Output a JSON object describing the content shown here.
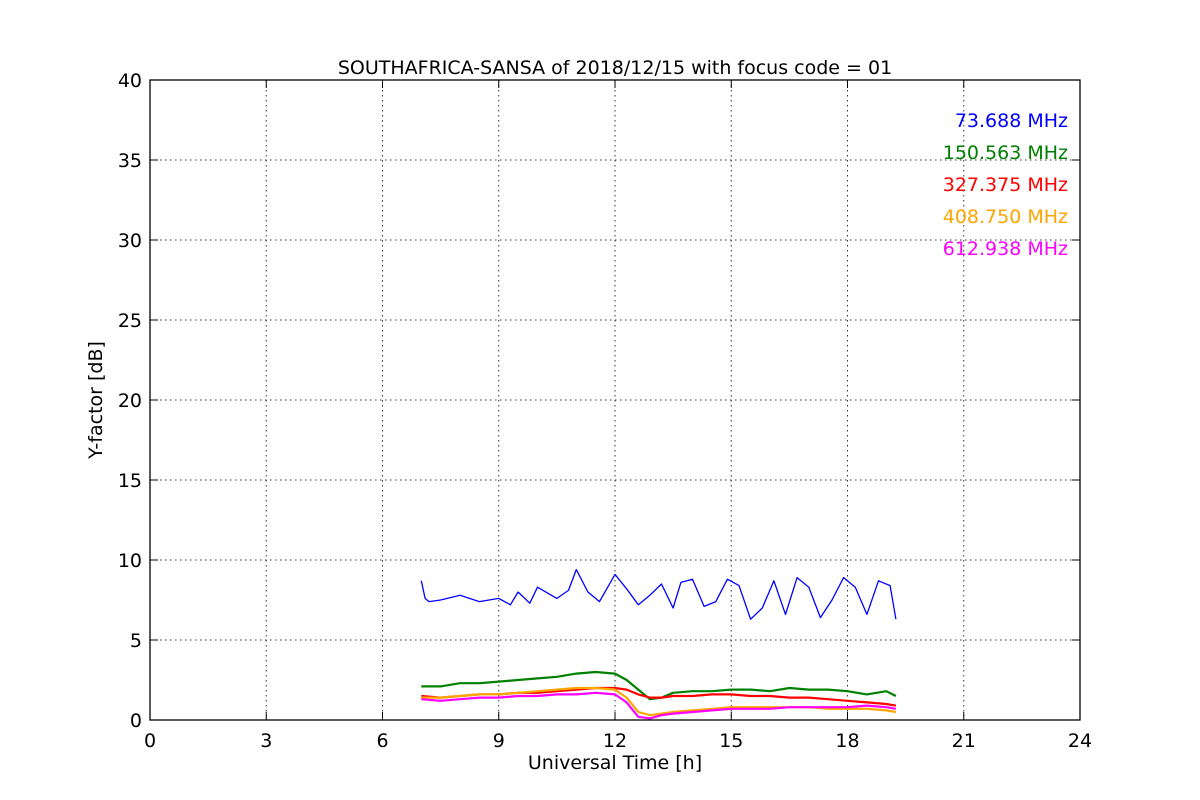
{
  "chart_data": {
    "type": "line",
    "title": "SOUTHAFRICA-SANSA of 2018/12/15 with focus code = 01",
    "xlabel": "Universal Time [h]",
    "ylabel": "Y-factor [dB]",
    "xlim": [
      0,
      24
    ],
    "ylim": [
      0,
      40
    ],
    "xticks": [
      0,
      3,
      6,
      9,
      12,
      15,
      18,
      21,
      24
    ],
    "yticks": [
      0,
      5,
      10,
      15,
      20,
      25,
      30,
      35,
      40
    ],
    "grid": true,
    "legend": "top-right",
    "series": [
      {
        "name": "73.688 MHz",
        "color": "#0000ff",
        "x": [
          7.0,
          7.1,
          7.2,
          7.5,
          8.0,
          8.5,
          9.0,
          9.3,
          9.5,
          9.8,
          10.0,
          10.5,
          10.8,
          11.0,
          11.3,
          11.6,
          12.0,
          12.3,
          12.6,
          12.9,
          13.2,
          13.5,
          13.7,
          14.0,
          14.3,
          14.6,
          14.9,
          15.2,
          15.5,
          15.8,
          16.1,
          16.4,
          16.7,
          17.0,
          17.3,
          17.6,
          17.9,
          18.2,
          18.5,
          18.8,
          19.1,
          19.25
        ],
        "y": [
          8.7,
          7.6,
          7.4,
          7.5,
          7.8,
          7.4,
          7.6,
          7.2,
          8.0,
          7.3,
          8.3,
          7.6,
          8.1,
          9.4,
          8.0,
          7.4,
          9.1,
          8.2,
          7.2,
          7.8,
          8.5,
          7.0,
          8.6,
          8.8,
          7.1,
          7.4,
          8.8,
          8.4,
          6.3,
          7.0,
          8.7,
          6.6,
          8.9,
          8.3,
          6.4,
          7.5,
          8.9,
          8.3,
          6.6,
          8.7,
          8.4,
          6.3
        ]
      },
      {
        "name": "150.563 MHz",
        "color": "#008000",
        "x": [
          7.0,
          7.5,
          8.0,
          8.5,
          9.0,
          9.5,
          10.0,
          10.5,
          11.0,
          11.5,
          12.0,
          12.3,
          12.6,
          12.9,
          13.2,
          13.5,
          14.0,
          14.5,
          15.0,
          15.5,
          16.0,
          16.5,
          17.0,
          17.5,
          18.0,
          18.5,
          19.0,
          19.25
        ],
        "y": [
          2.1,
          2.1,
          2.3,
          2.3,
          2.4,
          2.5,
          2.6,
          2.7,
          2.9,
          3.0,
          2.9,
          2.5,
          1.9,
          1.3,
          1.4,
          1.7,
          1.8,
          1.8,
          1.9,
          1.9,
          1.8,
          2.0,
          1.9,
          1.9,
          1.8,
          1.6,
          1.8,
          1.5
        ]
      },
      {
        "name": "327.375 MHz",
        "color": "#ff0000",
        "x": [
          7.0,
          7.5,
          8.0,
          8.5,
          9.0,
          9.5,
          10.0,
          10.5,
          11.0,
          11.5,
          12.0,
          12.3,
          12.6,
          12.9,
          13.2,
          13.5,
          14.0,
          14.5,
          15.0,
          15.5,
          16.0,
          16.5,
          17.0,
          17.5,
          18.0,
          18.5,
          19.0,
          19.25
        ],
        "y": [
          1.5,
          1.4,
          1.5,
          1.6,
          1.6,
          1.7,
          1.7,
          1.8,
          1.9,
          2.0,
          2.0,
          1.9,
          1.6,
          1.4,
          1.4,
          1.5,
          1.5,
          1.6,
          1.6,
          1.5,
          1.5,
          1.4,
          1.4,
          1.3,
          1.2,
          1.1,
          1.0,
          0.9
        ]
      },
      {
        "name": "408.750 MHz",
        "color": "#ffa500",
        "x": [
          7.0,
          7.5,
          8.0,
          8.5,
          9.0,
          9.5,
          10.0,
          10.5,
          11.0,
          11.5,
          12.0,
          12.3,
          12.6,
          12.9,
          13.2,
          13.5,
          14.0,
          14.5,
          15.0,
          15.5,
          16.0,
          16.5,
          17.0,
          17.5,
          18.0,
          18.5,
          19.0,
          19.25
        ],
        "y": [
          1.4,
          1.4,
          1.5,
          1.6,
          1.6,
          1.7,
          1.8,
          1.9,
          2.0,
          2.0,
          1.9,
          1.4,
          0.5,
          0.3,
          0.4,
          0.5,
          0.6,
          0.7,
          0.8,
          0.8,
          0.8,
          0.8,
          0.8,
          0.7,
          0.7,
          0.7,
          0.6,
          0.5
        ]
      },
      {
        "name": "612.938 MHz",
        "color": "#ff00ff",
        "x": [
          7.0,
          7.5,
          8.0,
          8.5,
          9.0,
          9.5,
          10.0,
          10.5,
          11.0,
          11.5,
          12.0,
          12.3,
          12.6,
          12.9,
          13.2,
          13.5,
          14.0,
          14.5,
          15.0,
          15.5,
          16.0,
          16.5,
          17.0,
          17.5,
          18.0,
          18.5,
          19.0,
          19.25
        ],
        "y": [
          1.3,
          1.2,
          1.3,
          1.4,
          1.4,
          1.5,
          1.5,
          1.6,
          1.6,
          1.7,
          1.6,
          1.1,
          0.2,
          0.1,
          0.3,
          0.4,
          0.5,
          0.6,
          0.7,
          0.7,
          0.7,
          0.8,
          0.8,
          0.8,
          0.8,
          0.9,
          0.8,
          0.7
        ]
      }
    ]
  }
}
